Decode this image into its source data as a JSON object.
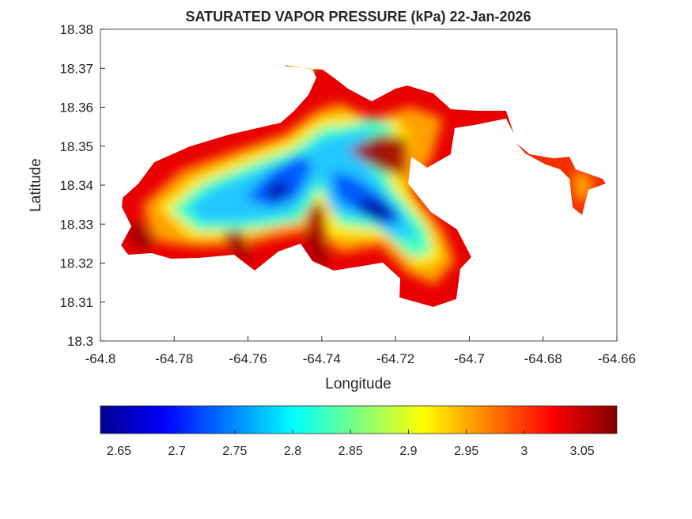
{
  "chart_data": {
    "type": "heatmap",
    "title": "SATURATED VAPOR PRESSURE (kPa) 22-Jan-2026",
    "xlabel": "Longitude",
    "ylabel": "Latitude",
    "xlim": [
      -64.8,
      -64.66
    ],
    "ylim": [
      18.3,
      18.38
    ],
    "xticks": [
      "-64.8",
      "-64.78",
      "-64.76",
      "-64.74",
      "-64.72",
      "-64.7",
      "-64.68",
      "-64.66"
    ],
    "yticks": [
      "18.3",
      "18.31",
      "18.32",
      "18.33",
      "18.34",
      "18.35",
      "18.36",
      "18.37",
      "18.38"
    ],
    "grid": false,
    "colormap": "jet",
    "colorbar": {
      "location": "bottom",
      "range": [
        2.634,
        3.08
      ],
      "ticks": [
        "2.65",
        "2.7",
        "2.75",
        "2.8",
        "2.85",
        "2.9",
        "2.95",
        "3",
        "3.05"
      ]
    },
    "value_summary": {
      "min_approx": 2.64,
      "max_approx": 3.08,
      "low_values_region": "central interior, around -64.75 to -64.72 lon, 18.33 to 18.35 lat",
      "high_values_region": "coastal edges and eastern tail"
    }
  }
}
